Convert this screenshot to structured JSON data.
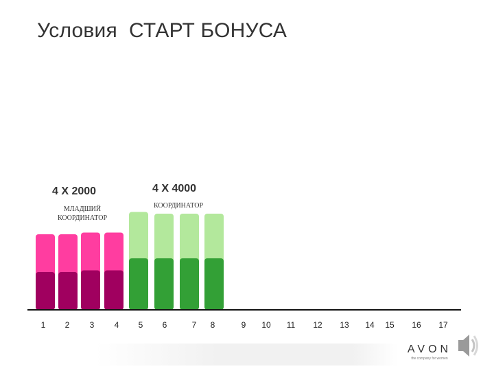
{
  "title": "Условия  СТАРТ БОНУСА",
  "groups": [
    {
      "label": "4 Х 2000",
      "sublabel_line1": "МЛАДШИЙ",
      "sublabel_line2": "КООРДИНАТОР"
    },
    {
      "label": "4 Х 4000",
      "sublabel": "КООРДИНАТОР"
    }
  ],
  "colors": {
    "pink": "#ff3da0",
    "magenta_dark": "#a0005f",
    "light_green": "#b3e89c",
    "green": "#33a036"
  },
  "chart_data": {
    "type": "bar",
    "stacked": true,
    "categories": [
      "1",
      "2",
      "3",
      "4",
      "5",
      "6",
      "7",
      "8",
      "9",
      "10",
      "11",
      "12",
      "13",
      "14",
      "15",
      "16",
      "17"
    ],
    "series": [
      {
        "values": [
          2.2,
          2.2,
          2.3,
          2.3,
          3.0,
          3.0,
          3.0,
          3.0,
          0,
          0,
          0,
          0,
          0,
          0,
          0,
          0,
          0
        ]
      },
      {
        "values": [
          2.2,
          2.2,
          2.2,
          2.2,
          2.7,
          2.6,
          2.6,
          2.6,
          0,
          0,
          0,
          0,
          0,
          0,
          0,
          0,
          0
        ]
      }
    ],
    "bar_colors": [
      [
        "#a0005f",
        "#ff3da0"
      ],
      [
        "#a0005f",
        "#ff3da0"
      ],
      [
        "#a0005f",
        "#ff3da0"
      ],
      [
        "#a0005f",
        "#ff3da0"
      ],
      [
        "#33a036",
        "#b3e89c"
      ],
      [
        "#33a036",
        "#b3e89c"
      ],
      [
        "#33a036",
        "#b3e89c"
      ],
      [
        "#33a036",
        "#b3e89c"
      ]
    ],
    "grid": false,
    "legend": "none"
  },
  "footer": {
    "brand": "AVON",
    "tagline": "the company for women"
  },
  "icons": {
    "speaker": "speaker-icon"
  }
}
